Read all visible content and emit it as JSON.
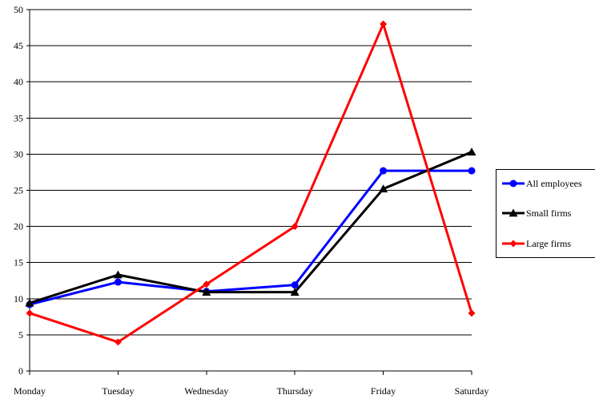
{
  "chart_data": {
    "type": "line",
    "title": "",
    "xlabel": "",
    "ylabel": "",
    "categories": [
      "Monday",
      "Tuesday",
      "Wednesday",
      "Thursday",
      "Friday",
      "Saturday"
    ],
    "ylim": [
      0,
      50
    ],
    "yticks": [
      0,
      5,
      10,
      15,
      20,
      25,
      30,
      35,
      40,
      45,
      50
    ],
    "grid": true,
    "legend_position": "right",
    "series": [
      {
        "name": "All employees",
        "color": "#0000ff",
        "marker": "circle",
        "values": [
          9.2,
          12.3,
          11.0,
          11.9,
          27.7,
          27.7
        ]
      },
      {
        "name": "Small firms",
        "color": "#000000",
        "marker": "triangle",
        "values": [
          9.4,
          13.3,
          10.9,
          10.9,
          25.2,
          30.3
        ]
      },
      {
        "name": "Large firms",
        "color": "#ff0000",
        "marker": "diamond",
        "values": [
          8.0,
          4.0,
          12.0,
          20.0,
          48.0,
          8.0
        ]
      }
    ]
  }
}
